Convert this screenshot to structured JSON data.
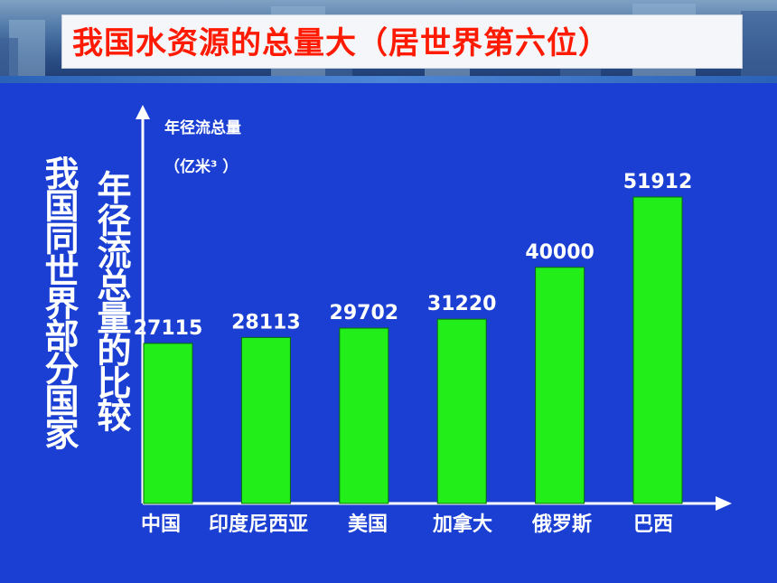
{
  "title": "我国水资源的总量大（居世界第六位）",
  "side_title_outer": "我国同世界部分国家",
  "side_title_inner": "年径流总量的比较",
  "ylabel_line1": "年径流总量",
  "ylabel_line2": "（亿米³ ）",
  "colors": {
    "bar": "#22ee1a",
    "background": "#1a3fd2",
    "title": "#ff1a00"
  },
  "chart_data": {
    "type": "bar",
    "categories": [
      "中国",
      "印度尼西亚",
      "美国",
      "加拿大",
      "俄罗斯",
      "巴西"
    ],
    "values": [
      27115,
      28113,
      29702,
      31220,
      40000,
      51912
    ],
    "ylabel": "年径流总量（亿米³ ）",
    "grid": false,
    "legend": "none"
  }
}
